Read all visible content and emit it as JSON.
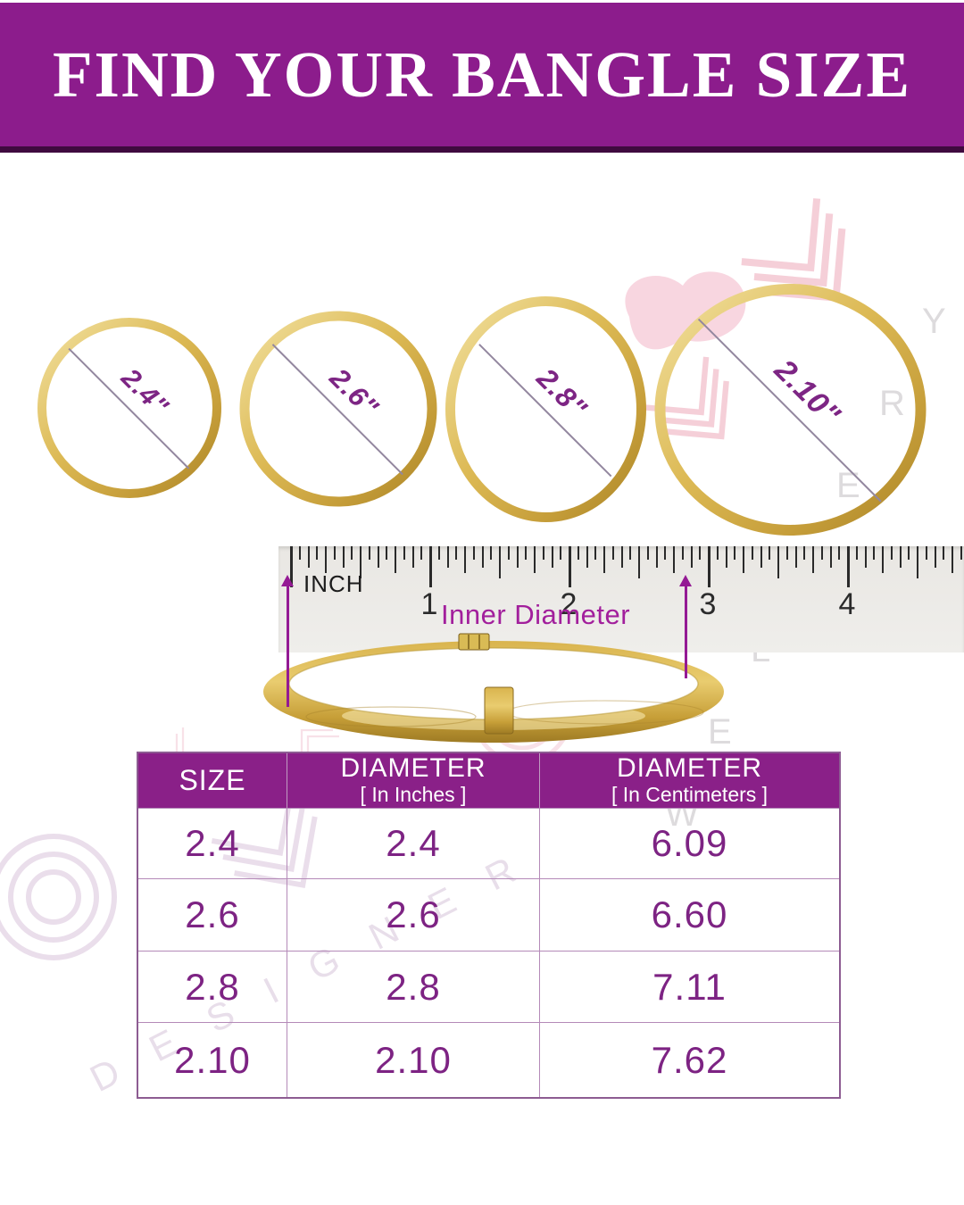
{
  "header": {
    "title": "FIND YOUR BANGLE SIZE"
  },
  "diagram": {
    "inner_diameter_label": "Inner Diameter",
    "bangles": [
      {
        "size": "2.4",
        "label": "2.4\""
      },
      {
        "size": "2.6",
        "label": "2.6\""
      },
      {
        "size": "2.8",
        "label": "2.8\""
      },
      {
        "size": "2.10",
        "label": "2.10\""
      }
    ]
  },
  "ruler": {
    "unit_label": "INCH",
    "numbers": [
      "1",
      "2",
      "3",
      "4"
    ]
  },
  "table": {
    "columns": [
      {
        "title": "SIZE",
        "subtitle": ""
      },
      {
        "title": "DIAMETER",
        "subtitle": "[ In Inches ]"
      },
      {
        "title": "DIAMETER",
        "subtitle": "[ In Centimeters ]"
      }
    ],
    "rows": [
      [
        "2.4",
        "2.4",
        "6.09"
      ],
      [
        "2.6",
        "2.6",
        "6.60"
      ],
      [
        "2.8",
        "2.8",
        "7.11"
      ],
      [
        "2.10",
        "2.10",
        "7.62"
      ]
    ]
  },
  "watermark": {
    "jewellery_letters": "WELLERY",
    "designer": "DESIGNER"
  },
  "colors": {
    "banner_purple": "#8C1C8C",
    "table_header_purple": "#8A2088",
    "value_purple": "#7D2383",
    "accent_magenta": "#A21F9C",
    "arrow_purple": "#941A94",
    "gold": "#D8B44C"
  }
}
